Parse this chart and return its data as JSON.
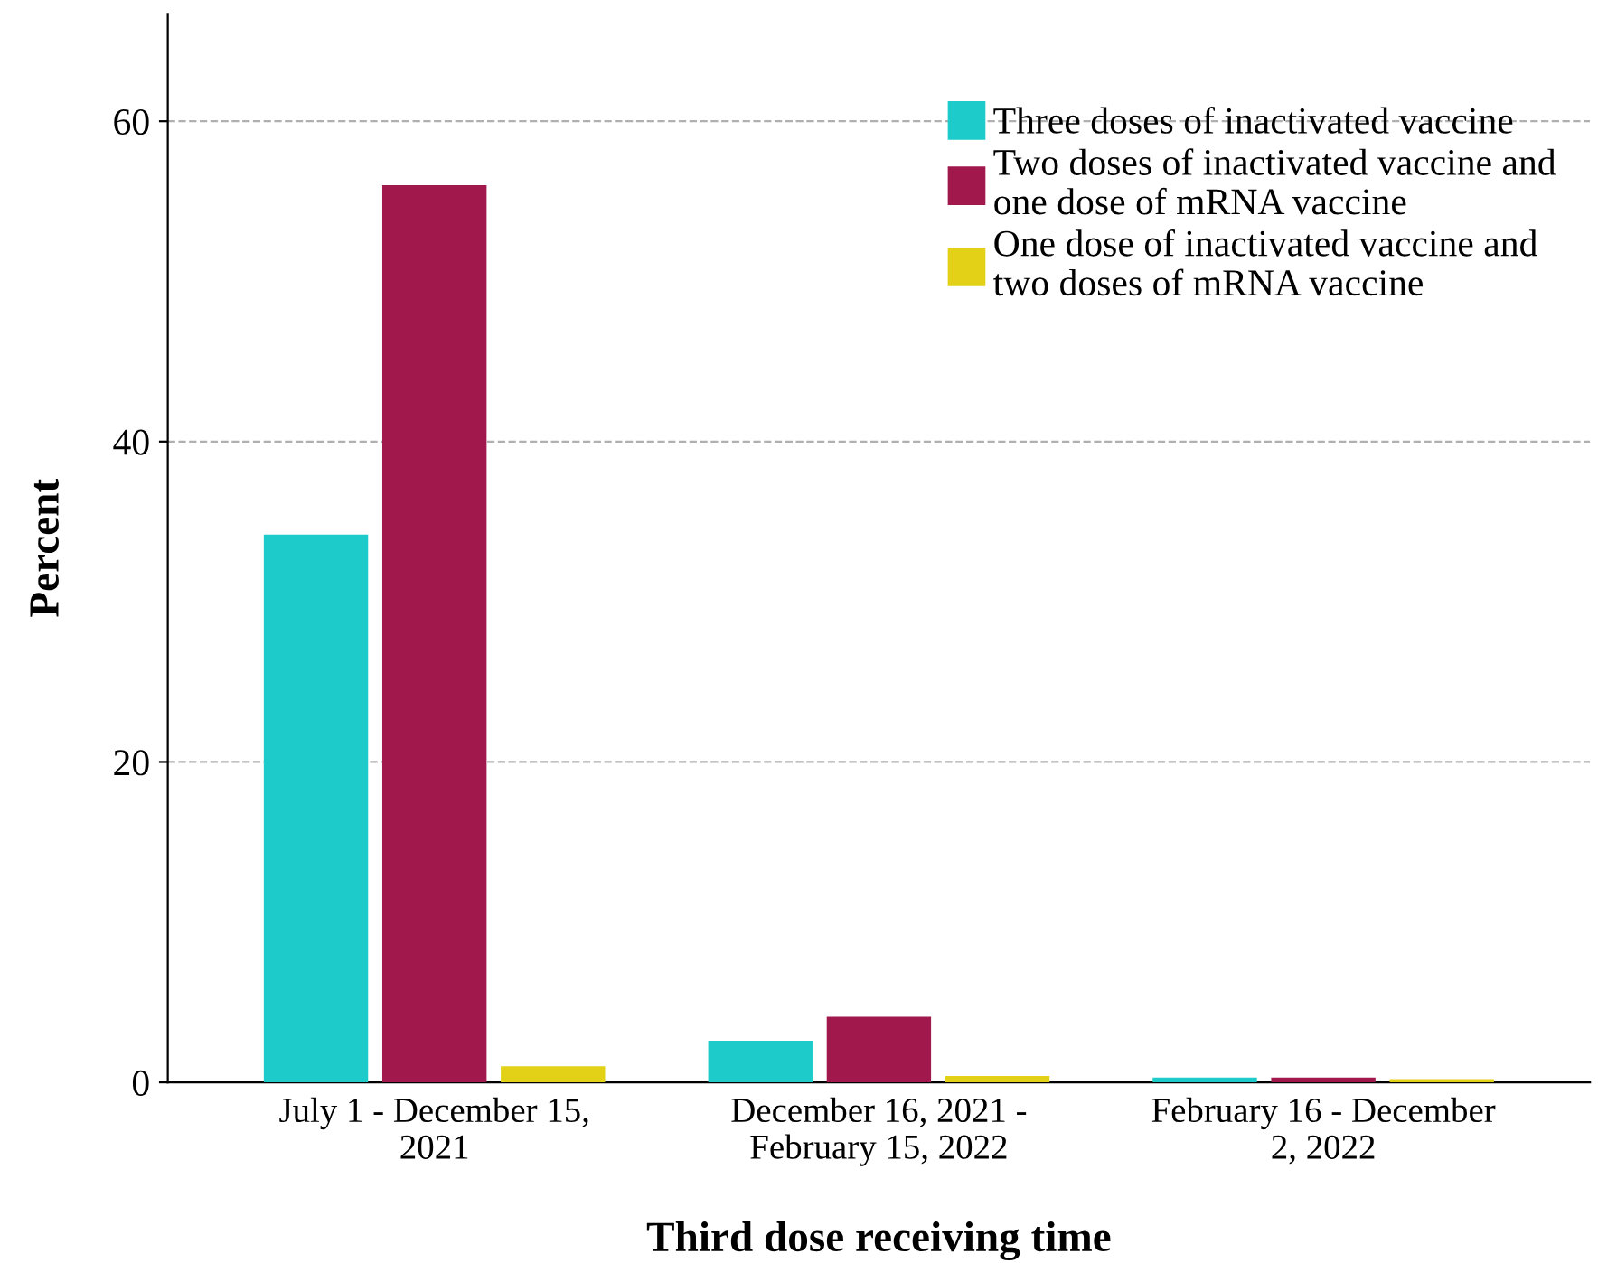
{
  "chart_data": {
    "type": "bar",
    "xlabel": "Third dose receiving time",
    "ylabel": "Percent",
    "categories": [
      "July 1 - December 15,\n2021",
      "December 16, 2021 -\nFebruary 15, 2022",
      "February 16 - December\n2, 2022"
    ],
    "series": [
      {
        "name": "Three doses of inactivated vaccine",
        "color": "#1ecbcb",
        "values": [
          34.2,
          2.6,
          0.3
        ]
      },
      {
        "name": "Two doses of inactivated vaccine and\none dose of mRNA vaccine",
        "color": "#a0184c",
        "values": [
          56,
          4.1,
          0.3
        ]
      },
      {
        "name": "One dose of inactivated vaccine and\ntwo doses of mRNA vaccine",
        "color": "#e2d116",
        "values": [
          1.0,
          0.4,
          0.2
        ]
      }
    ],
    "ylim": [
      0,
      66.7
    ],
    "yticks": [
      0,
      20,
      40,
      60
    ],
    "grid": "y",
    "legend": "top right"
  }
}
